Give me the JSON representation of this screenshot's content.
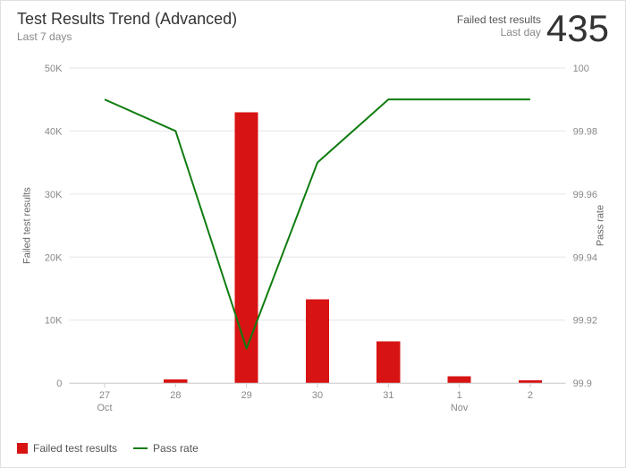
{
  "header": {
    "title": "Test Results Trend (Advanced)",
    "subtitle": "Last 7 days",
    "metric_label1": "Failed test results",
    "metric_label2": "Last day",
    "metric_value": "435"
  },
  "chart": {
    "type": "combo-bar-line",
    "background_color": "#ffffff",
    "grid_color": "#e6e6e6",
    "axis_color": "#cccccc",
    "tick_font_color": "#888888",
    "tick_fontsize": 11,
    "left_axis_label": "Failed test results",
    "right_axis_label": "Pass rate",
    "axis_label_fontsize": 11,
    "x": {
      "categories": [
        "27",
        "28",
        "29",
        "30",
        "31",
        "1",
        "2"
      ],
      "group_labels": {
        "27": "Oct",
        "1": "Nov"
      }
    },
    "y_left": {
      "min": 0,
      "max": 50000,
      "ticks": [
        0,
        10000,
        20000,
        30000,
        40000,
        50000
      ],
      "tick_labels": [
        "0",
        "10K",
        "20K",
        "30K",
        "40K",
        "50K"
      ]
    },
    "y_right": {
      "min": 99.9,
      "max": 100.0,
      "ticks": [
        99.9,
        99.92,
        99.94,
        99.96,
        99.98,
        100
      ],
      "tick_labels": [
        "99.9",
        "99.92",
        "99.94",
        "99.96",
        "99.98",
        "100"
      ]
    },
    "bars": {
      "label": "Failed test results",
      "color": "#d81313",
      "width": 0.33,
      "values": [
        0,
        600,
        43000,
        13300,
        6600,
        1100,
        435
      ]
    },
    "line": {
      "label": "Pass rate",
      "color": "#107c10",
      "width": 2,
      "values": [
        99.99,
        99.98,
        99.911,
        99.97,
        99.99,
        99.99,
        99.99
      ]
    }
  },
  "legend": {
    "items": [
      {
        "type": "swatch",
        "color": "#d81313",
        "label": "Failed test results"
      },
      {
        "type": "dash",
        "color": "#107c10",
        "label": "Pass rate"
      }
    ]
  }
}
